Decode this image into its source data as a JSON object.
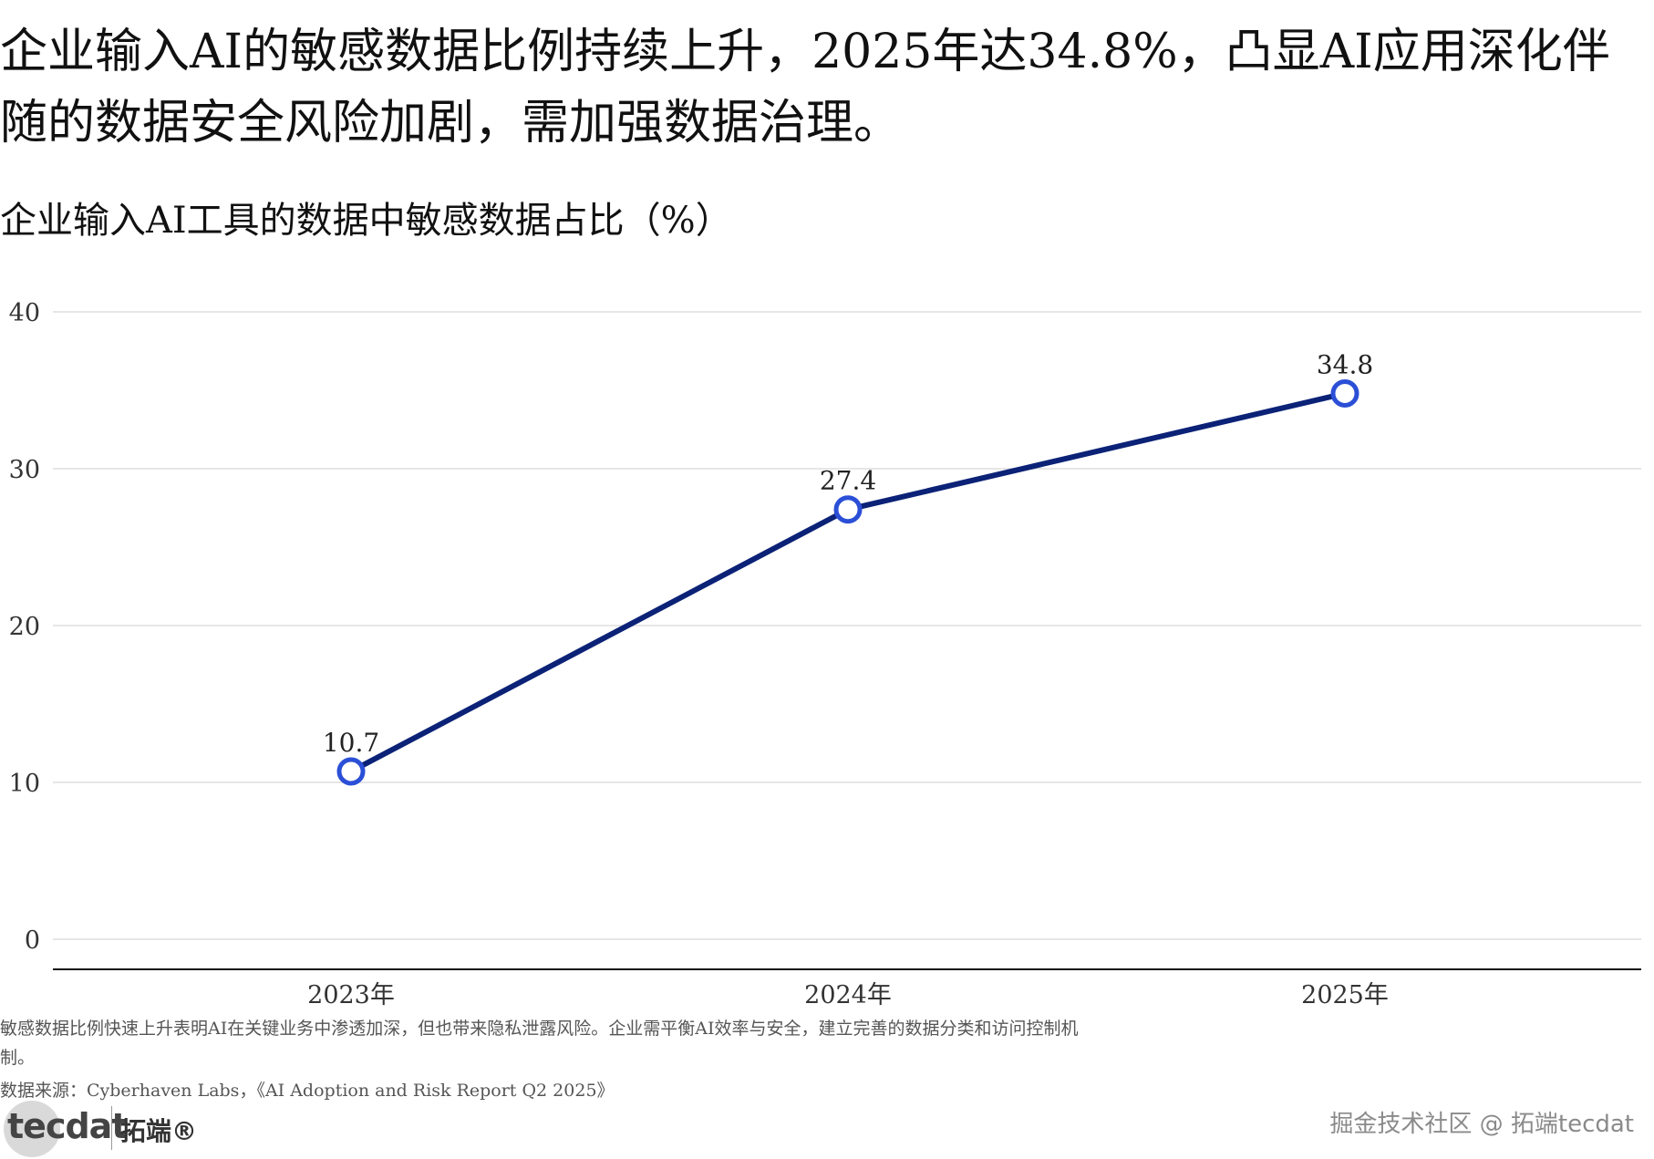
{
  "header": {
    "headline": "企业输入AI的敏感数据比例持续上升，2025年达34.8%，凸显AI应用深化伴随的数据安全风险加剧，需加强数据治理。",
    "subtitle": "企业输入AI工具的数据中敏感数据占比（%）"
  },
  "chart_data": {
    "type": "line",
    "title": "企业输入AI工具的数据中敏感数据占比（%）",
    "categories": [
      "2023年",
      "2024年",
      "2025年"
    ],
    "series": [
      {
        "values": [
          10.7,
          27.4,
          34.8
        ]
      }
    ],
    "data_labels": [
      "10.7",
      "27.4",
      "34.8"
    ],
    "y_ticks": [
      0,
      10,
      20,
      30,
      40
    ],
    "ylim": [
      0,
      40
    ],
    "xlabel": "",
    "ylabel": "",
    "grid": "horizontal",
    "line_color": "#0b2277",
    "marker_color": "#2b4fd6"
  },
  "footer": {
    "note": "敏感数据比例快速上升表明AI在关键业务中渗透加深，但也带来隐私泄露风险。企业需平衡AI效率与安全，建立完善的数据分类和访问控制机制。",
    "source": "数据来源：Cyberhaven Labs，《AI Adoption and Risk Report Q2 2025》",
    "brand_word": "tecdat",
    "brand_cn": "拓端®",
    "watermark": "掘金技术社区 @ 拓端tecdat"
  }
}
